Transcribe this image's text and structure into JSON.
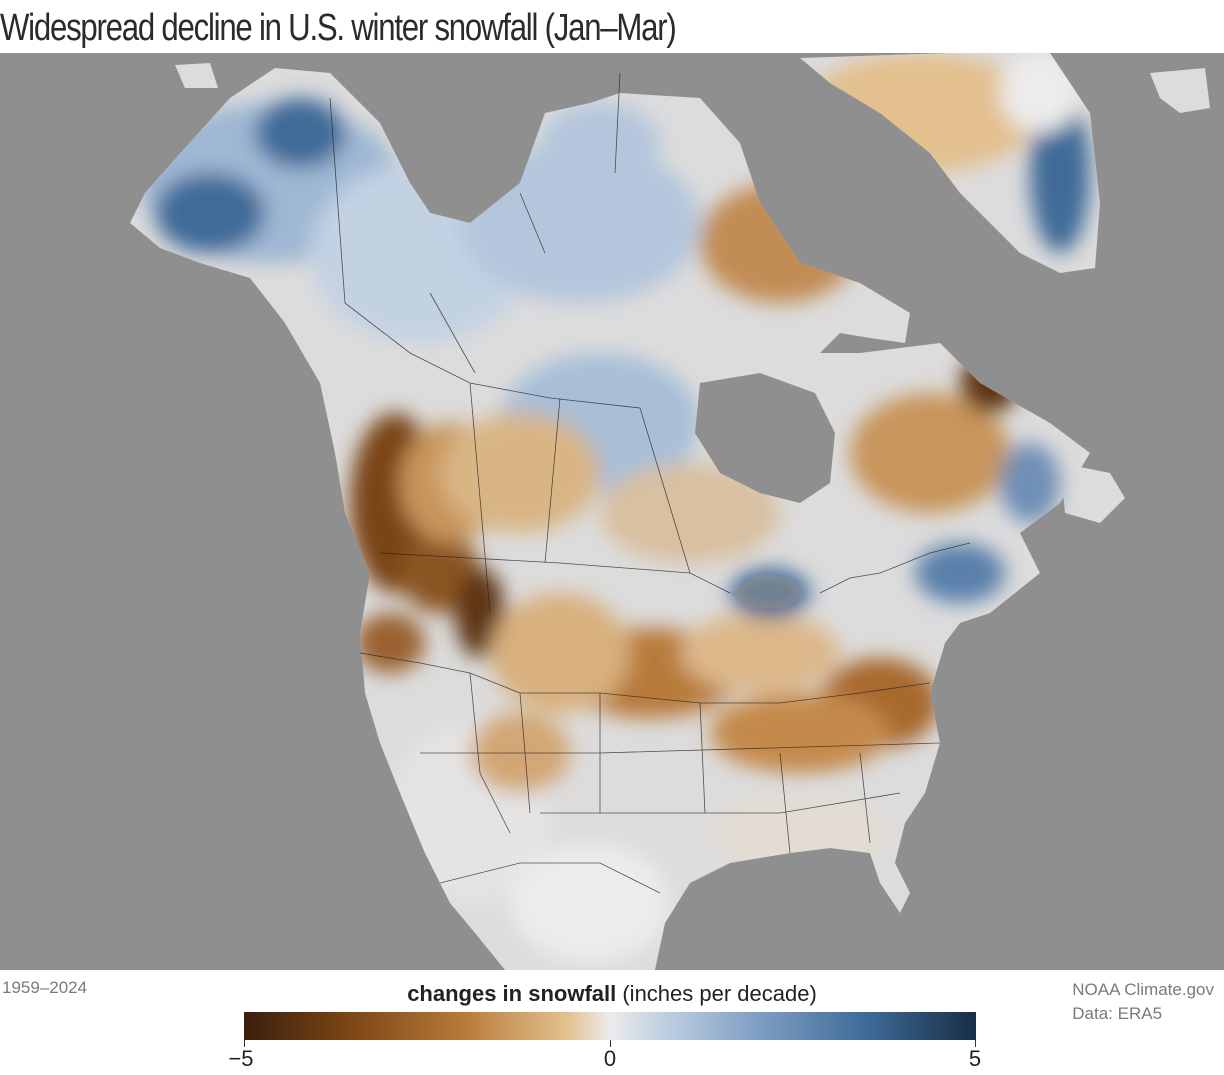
{
  "title": "Widespread decline in U.S. winter snowfall (Jan–Mar)",
  "period": "1959–2024",
  "legend": {
    "title_bold": "changes in snowfall",
    "title_unit": "(inches per decade)",
    "min_label": "−5",
    "mid_label": "0",
    "max_label": "5",
    "range": [
      -5,
      5
    ],
    "colors": {
      "strong_decline": "#3a1f0c",
      "decline": "#b87a3a",
      "neutral": "#ececec",
      "increase": "#7f9fc4",
      "strong_increase": "#172e45"
    }
  },
  "credit": {
    "source": "NOAA Climate.gov",
    "data": "Data: ERA5"
  },
  "colors": {
    "ocean": "#8f8f8f",
    "text": "#2b2b2b",
    "muted_text": "#7a7a7a"
  }
}
